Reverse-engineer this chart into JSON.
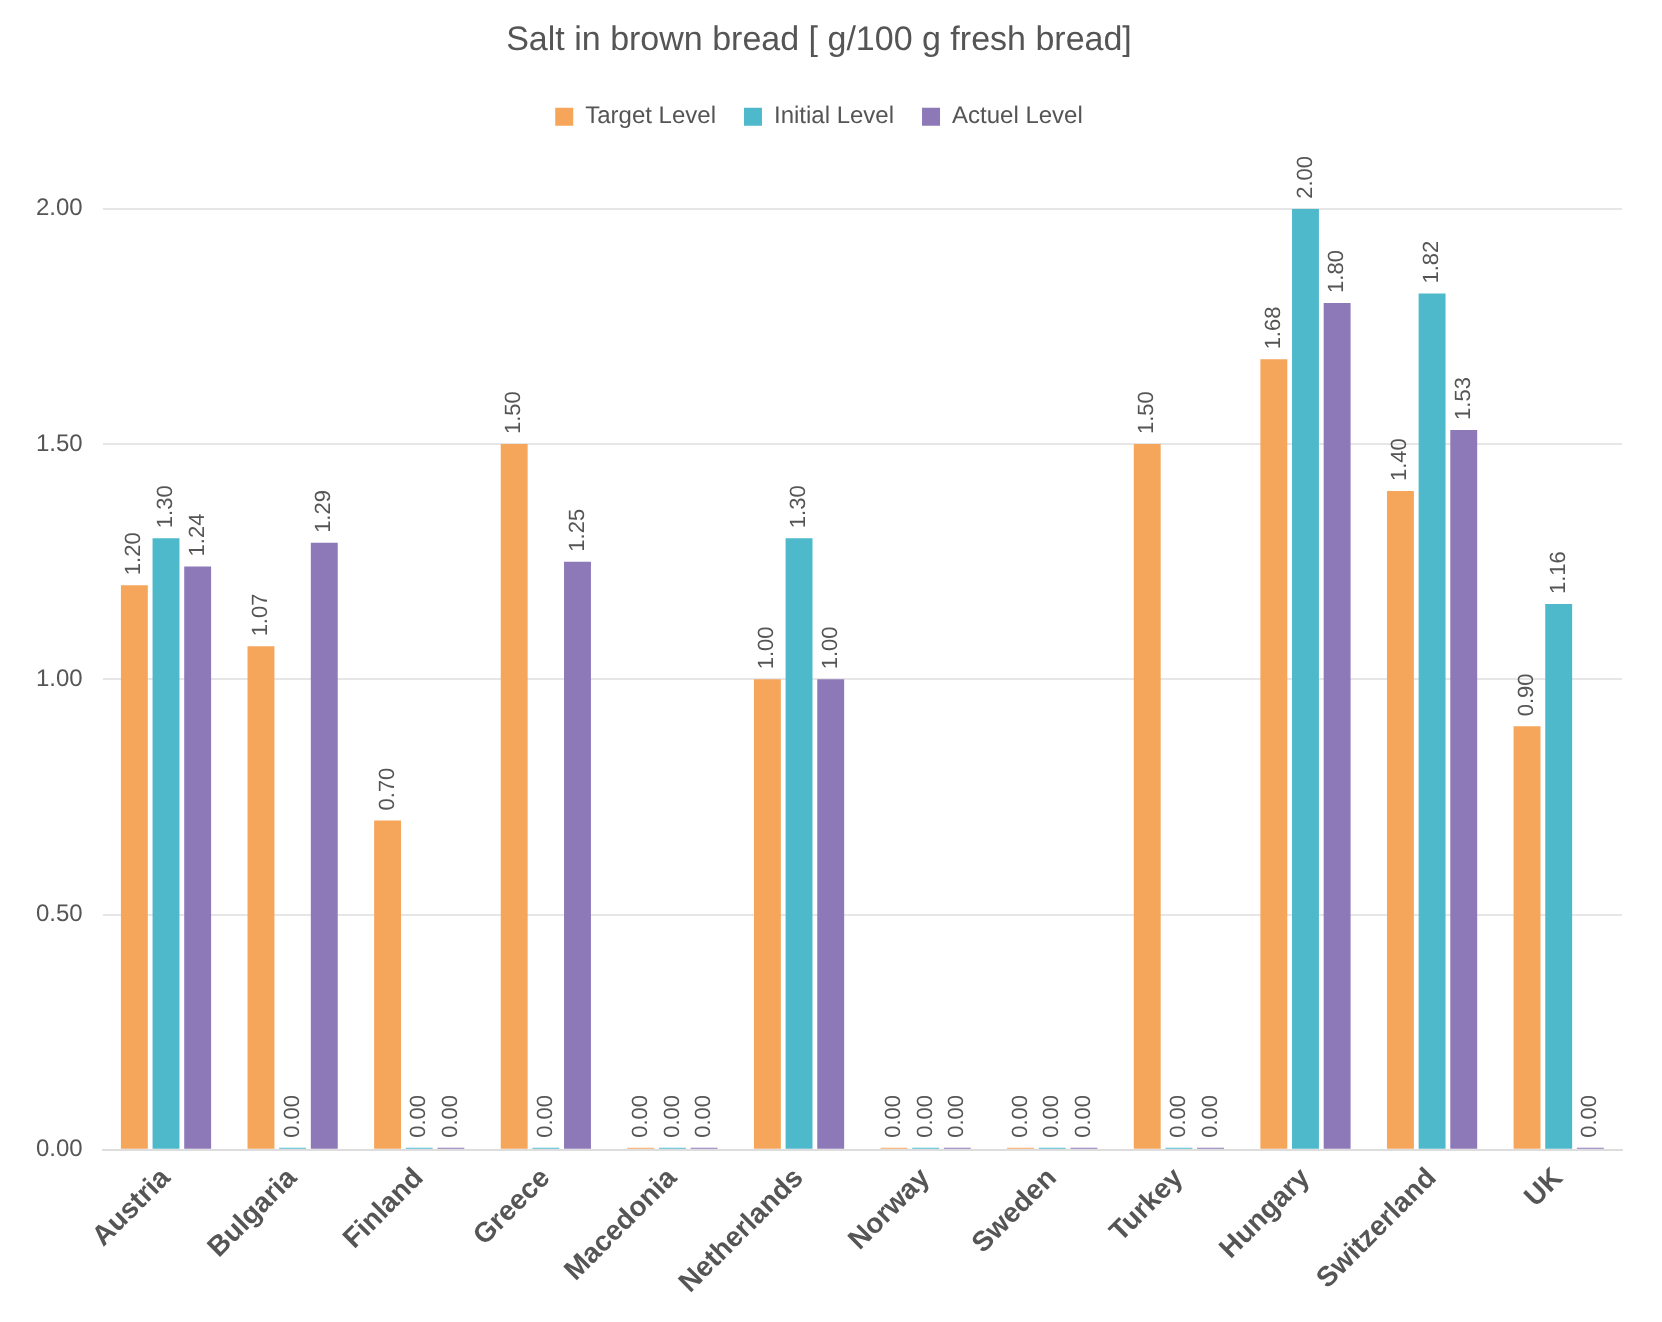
{
  "chart_data": {
    "type": "bar",
    "title": "Salt in brown bread [ g/100 g fresh bread]",
    "categories": [
      "Austria",
      "Bulgaria",
      "Finland",
      "Greece",
      "Macedonia",
      "Netherlands",
      "Norway",
      "Sweden",
      "Turkey",
      "Hungary",
      "Switzerland",
      "UK"
    ],
    "series": [
      {
        "name": "Target Level",
        "color": "#f5a65b",
        "values": [
          1.2,
          1.07,
          0.7,
          1.5,
          0,
          1,
          0,
          0,
          1.5,
          1.68,
          1.4,
          0.9
        ],
        "value_labels": [
          "1.20",
          "1.07",
          "0.70",
          "1.50",
          "0.00",
          "1.00",
          "0.00",
          "0.00",
          "1.50",
          "1.68",
          "1.40",
          "0.90"
        ]
      },
      {
        "name": "Initial Level",
        "color": "#4fb9cc",
        "values": [
          1.3,
          0,
          0,
          0,
          0,
          1.3,
          0,
          0,
          0,
          2,
          1.82,
          1.16
        ],
        "value_labels": [
          "1.30",
          "0.00",
          "0.00",
          "0.00",
          "0.00",
          "1.30",
          "0.00",
          "0.00",
          "0.00",
          "2.00",
          "1.82",
          "1.16"
        ]
      },
      {
        "name": "Actuel Level",
        "color": "#8d78b8",
        "values": [
          1.24,
          1.29,
          0,
          1.25,
          0,
          1,
          0,
          0,
          0,
          1.8,
          1.53,
          0
        ],
        "value_labels": [
          "1.24",
          "1.29",
          "0.00",
          "1.25",
          "0.00",
          "1.00",
          "0.00",
          "0.00",
          "0.00",
          "1.80",
          "1.53",
          "0.00"
        ]
      }
    ],
    "ylim": [
      0,
      2
    ],
    "yticks": [
      {
        "value": 0,
        "label": "0.00"
      },
      {
        "value": 0.5,
        "label": "0.50"
      },
      {
        "value": 1,
        "label": "1.00"
      },
      {
        "value": 1.5,
        "label": "1.50"
      },
      {
        "value": 2,
        "label": "2.00"
      }
    ],
    "grid": "y",
    "legend": "top"
  }
}
